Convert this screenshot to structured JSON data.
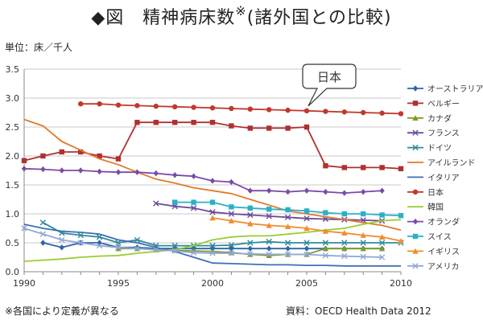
{
  "title": {
    "marker": "◆",
    "main": "図　精神病床数",
    "mark": "※",
    "sub": "(諸外国との比較)"
  },
  "unit_label": "単位：床／千人",
  "footnote": "※各国により定義が異なる",
  "source": "資料：OECD Health Data 2012",
  "chart_data": {
    "type": "line",
    "title": "精神病床数 (諸外国との比較)",
    "xlabel": "",
    "ylabel": "単位：床／千人",
    "xlim": [
      1990,
      2010
    ],
    "ylim": [
      0,
      3.5
    ],
    "xticks": [
      1990,
      1995,
      2000,
      2005,
      2010
    ],
    "xtick_labels": [
      "1990",
      "1995",
      "2000",
      "2005",
      "2010"
    ],
    "yticks": [
      0,
      0.5,
      1.0,
      1.5,
      2.0,
      2.5,
      3.0,
      3.5
    ],
    "ytick_labels": [
      "0.0",
      "0.5",
      "1.0",
      "1.5",
      "2.0",
      "2.5",
      "3.0",
      "3.5"
    ],
    "grid": true,
    "legend_position": "right",
    "annotation": {
      "text": "日本",
      "x": 2005,
      "y": 2.78
    },
    "series": [
      {
        "name": "オーストラリア",
        "color": "#2e64a8",
        "marker": "diamond",
        "points": [
          [
            1991,
            0.5
          ],
          [
            1992,
            0.42
          ],
          [
            1993,
            0.5
          ],
          [
            1994,
            0.5
          ],
          [
            1995,
            0.42
          ],
          [
            1996,
            0.42
          ],
          [
            1997,
            0.4
          ],
          [
            1998,
            0.4
          ],
          [
            1999,
            0.4
          ],
          [
            2000,
            0.4
          ],
          [
            2001,
            0.4
          ],
          [
            2002,
            0.4
          ],
          [
            2003,
            0.4
          ],
          [
            2004,
            0.4
          ],
          [
            2005,
            0.4
          ],
          [
            2006,
            0.4
          ],
          [
            2007,
            0.4
          ],
          [
            2008,
            0.4
          ],
          [
            2009,
            0.4
          ]
        ]
      },
      {
        "name": "ベルギー",
        "color": "#b03030",
        "marker": "square",
        "points": [
          [
            1990,
            1.92
          ],
          [
            1991,
            2.0
          ],
          [
            1992,
            2.07
          ],
          [
            1993,
            2.07
          ],
          [
            1994,
            2.0
          ],
          [
            1995,
            1.95
          ],
          [
            1996,
            2.58
          ],
          [
            1997,
            2.58
          ],
          [
            1998,
            2.58
          ],
          [
            1999,
            2.58
          ],
          [
            2000,
            2.58
          ],
          [
            2001,
            2.52
          ],
          [
            2002,
            2.48
          ],
          [
            2003,
            2.48
          ],
          [
            2004,
            2.48
          ],
          [
            2005,
            2.5
          ],
          [
            2006,
            1.83
          ],
          [
            2007,
            1.8
          ],
          [
            2008,
            1.8
          ],
          [
            2009,
            1.8
          ],
          [
            2010,
            1.78
          ]
        ]
      },
      {
        "name": "カナダ",
        "color": "#7f9a2c",
        "marker": "triangle",
        "points": [
          [
            1995,
            0.4
          ],
          [
            1996,
            0.4
          ],
          [
            1997,
            0.38
          ],
          [
            1998,
            0.37
          ],
          [
            1999,
            0.36
          ],
          [
            2000,
            0.35
          ],
          [
            2001,
            0.33
          ],
          [
            2002,
            0.3
          ],
          [
            2003,
            0.28
          ],
          [
            2004,
            0.3
          ],
          [
            2005,
            0.3
          ],
          [
            2006,
            0.4
          ],
          [
            2007,
            0.4
          ],
          [
            2008,
            0.4
          ],
          [
            2009,
            0.4
          ]
        ]
      },
      {
        "name": "フランス",
        "color": "#6b4a9a",
        "marker": "x",
        "points": [
          [
            1997,
            1.18
          ],
          [
            1998,
            1.13
          ],
          [
            1999,
            1.1
          ],
          [
            2000,
            1.03
          ],
          [
            2001,
            1.0
          ],
          [
            2002,
            0.98
          ],
          [
            2003,
            0.96
          ],
          [
            2004,
            0.94
          ],
          [
            2005,
            0.92
          ],
          [
            2006,
            0.91
          ],
          [
            2007,
            0.9
          ],
          [
            2008,
            0.89
          ],
          [
            2009,
            0.88
          ]
        ]
      },
      {
        "name": "ドイツ",
        "color": "#2e8b9a",
        "marker": "x",
        "points": [
          [
            1991,
            0.85
          ],
          [
            1992,
            0.67
          ],
          [
            1993,
            0.63
          ],
          [
            1994,
            0.6
          ],
          [
            1995,
            0.5
          ],
          [
            1996,
            0.55
          ],
          [
            1997,
            0.45
          ],
          [
            1998,
            0.45
          ],
          [
            1999,
            0.45
          ],
          [
            2000,
            0.45
          ],
          [
            2001,
            0.46
          ],
          [
            2002,
            0.5
          ],
          [
            2003,
            0.52
          ],
          [
            2004,
            0.5
          ],
          [
            2005,
            0.5
          ],
          [
            2006,
            0.5
          ],
          [
            2007,
            0.5
          ],
          [
            2008,
            0.5
          ],
          [
            2009,
            0.5
          ],
          [
            2010,
            0.5
          ]
        ]
      },
      {
        "name": "アイルランド",
        "color": "#e07a2a",
        "marker": "none",
        "points": [
          [
            1990,
            2.63
          ],
          [
            1991,
            2.52
          ],
          [
            1992,
            2.25
          ],
          [
            1993,
            2.1
          ],
          [
            1994,
            1.95
          ],
          [
            1995,
            1.85
          ],
          [
            1996,
            1.72
          ],
          [
            1997,
            1.6
          ],
          [
            1998,
            1.53
          ],
          [
            1999,
            1.45
          ],
          [
            2000,
            1.4
          ],
          [
            2001,
            1.35
          ],
          [
            2002,
            1.25
          ],
          [
            2003,
            1.15
          ],
          [
            2004,
            1.05
          ],
          [
            2005,
            1.0
          ],
          [
            2006,
            0.95
          ],
          [
            2007,
            0.9
          ],
          [
            2008,
            0.85
          ],
          [
            2009,
            0.8
          ],
          [
            2010,
            0.72
          ]
        ]
      },
      {
        "name": "イタリア",
        "color": "#3f6fb5",
        "marker": "none",
        "points": [
          [
            1990,
            0.82
          ],
          [
            1991,
            0.75
          ],
          [
            1992,
            0.7
          ],
          [
            1993,
            0.68
          ],
          [
            1994,
            0.65
          ],
          [
            1995,
            0.55
          ],
          [
            1996,
            0.5
          ],
          [
            1997,
            0.42
          ],
          [
            1998,
            0.35
          ],
          [
            1999,
            0.25
          ],
          [
            2000,
            0.15
          ],
          [
            2001,
            0.14
          ],
          [
            2002,
            0.13
          ],
          [
            2003,
            0.12
          ],
          [
            2004,
            0.12
          ],
          [
            2005,
            0.11
          ],
          [
            2006,
            0.11
          ],
          [
            2007,
            0.1
          ],
          [
            2008,
            0.1
          ],
          [
            2009,
            0.1
          ],
          [
            2010,
            0.1
          ]
        ]
      },
      {
        "name": "日本",
        "color": "#c0392b",
        "marker": "circle",
        "points": [
          [
            1993,
            2.9
          ],
          [
            1994,
            2.9
          ],
          [
            1995,
            2.88
          ],
          [
            1996,
            2.87
          ],
          [
            1997,
            2.86
          ],
          [
            1998,
            2.85
          ],
          [
            1999,
            2.84
          ],
          [
            2000,
            2.83
          ],
          [
            2001,
            2.82
          ],
          [
            2002,
            2.81
          ],
          [
            2003,
            2.8
          ],
          [
            2004,
            2.79
          ],
          [
            2005,
            2.78
          ],
          [
            2006,
            2.77
          ],
          [
            2007,
            2.76
          ],
          [
            2008,
            2.75
          ],
          [
            2009,
            2.74
          ],
          [
            2010,
            2.73
          ]
        ]
      },
      {
        "name": "韓国",
        "color": "#9acd32",
        "marker": "none",
        "points": [
          [
            1990,
            0.18
          ],
          [
            1991,
            0.2
          ],
          [
            1992,
            0.22
          ],
          [
            1993,
            0.25
          ],
          [
            1994,
            0.27
          ],
          [
            1995,
            0.28
          ],
          [
            1996,
            0.32
          ],
          [
            1997,
            0.35
          ],
          [
            1998,
            0.38
          ],
          [
            1999,
            0.45
          ],
          [
            2000,
            0.55
          ],
          [
            2001,
            0.6
          ],
          [
            2002,
            0.62
          ],
          [
            2003,
            0.62
          ],
          [
            2004,
            0.65
          ],
          [
            2005,
            0.68
          ],
          [
            2006,
            0.72
          ],
          [
            2007,
            0.75
          ],
          [
            2008,
            0.82
          ],
          [
            2009,
            0.88
          ],
          [
            2010,
            0.9
          ]
        ]
      },
      {
        "name": "オランダ",
        "color": "#7b4aa5",
        "marker": "diamond",
        "points": [
          [
            1990,
            1.78
          ],
          [
            1991,
            1.77
          ],
          [
            1992,
            1.75
          ],
          [
            1993,
            1.75
          ],
          [
            1994,
            1.73
          ],
          [
            1995,
            1.72
          ],
          [
            1996,
            1.72
          ],
          [
            1997,
            1.7
          ],
          [
            1998,
            1.67
          ],
          [
            1999,
            1.65
          ],
          [
            2000,
            1.57
          ],
          [
            2001,
            1.55
          ],
          [
            2002,
            1.4
          ],
          [
            2003,
            1.4
          ],
          [
            2004,
            1.38
          ],
          [
            2005,
            1.4
          ],
          [
            2006,
            1.38
          ],
          [
            2007,
            1.36
          ],
          [
            2008,
            1.38
          ],
          [
            2009,
            1.4
          ]
        ]
      },
      {
        "name": "スイス",
        "color": "#2ab0c8",
        "marker": "square",
        "points": [
          [
            1998,
            1.2
          ],
          [
            1999,
            1.2
          ],
          [
            2000,
            1.2
          ],
          [
            2001,
            1.12
          ],
          [
            2002,
            1.1
          ],
          [
            2003,
            1.08
          ],
          [
            2004,
            1.07
          ],
          [
            2005,
            1.05
          ],
          [
            2006,
            1.02
          ],
          [
            2007,
            1.0
          ],
          [
            2008,
            1.0
          ],
          [
            2009,
            0.98
          ],
          [
            2010,
            0.97
          ]
        ]
      },
      {
        "name": "イギリス",
        "color": "#f08c30",
        "marker": "triangle",
        "points": [
          [
            2000,
            0.93
          ],
          [
            2001,
            0.88
          ],
          [
            2002,
            0.83
          ],
          [
            2003,
            0.8
          ],
          [
            2004,
            0.78
          ],
          [
            2005,
            0.75
          ],
          [
            2006,
            0.7
          ],
          [
            2007,
            0.67
          ],
          [
            2008,
            0.63
          ],
          [
            2009,
            0.6
          ],
          [
            2010,
            0.53
          ]
        ]
      },
      {
        "name": "アメリカ",
        "color": "#8fa8d8",
        "marker": "x",
        "points": [
          [
            1990,
            0.75
          ],
          [
            1991,
            0.65
          ],
          [
            1992,
            0.55
          ],
          [
            1993,
            0.5
          ],
          [
            1994,
            0.45
          ],
          [
            1995,
            0.42
          ],
          [
            1996,
            0.4
          ],
          [
            1997,
            0.38
          ],
          [
            1998,
            0.36
          ],
          [
            1999,
            0.33
          ],
          [
            2000,
            0.32
          ],
          [
            2001,
            0.32
          ],
          [
            2002,
            0.31
          ],
          [
            2003,
            0.3
          ],
          [
            2004,
            0.3
          ],
          [
            2005,
            0.3
          ],
          [
            2006,
            0.28
          ],
          [
            2007,
            0.27
          ],
          [
            2008,
            0.26
          ],
          [
            2009,
            0.25
          ]
        ]
      }
    ]
  }
}
